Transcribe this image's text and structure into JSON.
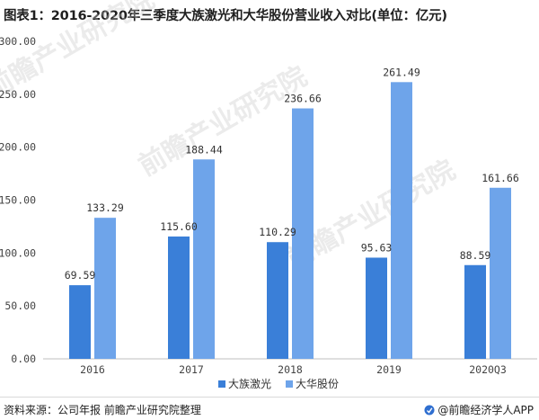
{
  "title": "图表1：2016-2020年三季度大族激光和大华股份营业收入对比(单位：亿元)",
  "footer": {
    "source": "资料来源：公司年报 前瞻产业研究院整理",
    "brand": "@前瞻经济学人APP"
  },
  "watermark": "前瞻产业研究院",
  "chart_data": {
    "type": "bar",
    "title": "图表1：2016-2020年三季度大族激光和大华股份营业收入对比(单位：亿元)",
    "categories": [
      "2016",
      "2017",
      "2018",
      "2019",
      "2020Q3"
    ],
    "series": [
      {
        "name": "大族激光",
        "values": [
          69.59,
          115.6,
          110.29,
          95.63,
          88.59
        ],
        "color": "#3a7fd8"
      },
      {
        "name": "大华股份",
        "values": [
          133.29,
          188.44,
          236.66,
          261.49,
          161.66
        ],
        "color": "#6ea4ea"
      }
    ],
    "value_labels": [
      [
        "69.59",
        "115.60",
        "110.29",
        "95.63",
        "88.59"
      ],
      [
        "133.29",
        "188.44",
        "236.66",
        "261.49",
        "161.66"
      ]
    ],
    "ylim": [
      0,
      300
    ],
    "yticks": [
      "0.00",
      "50.00",
      "100.00",
      "150.00",
      "200.00",
      "250.00",
      "300.00"
    ],
    "legend_position": "bottom-center",
    "grid": false
  }
}
